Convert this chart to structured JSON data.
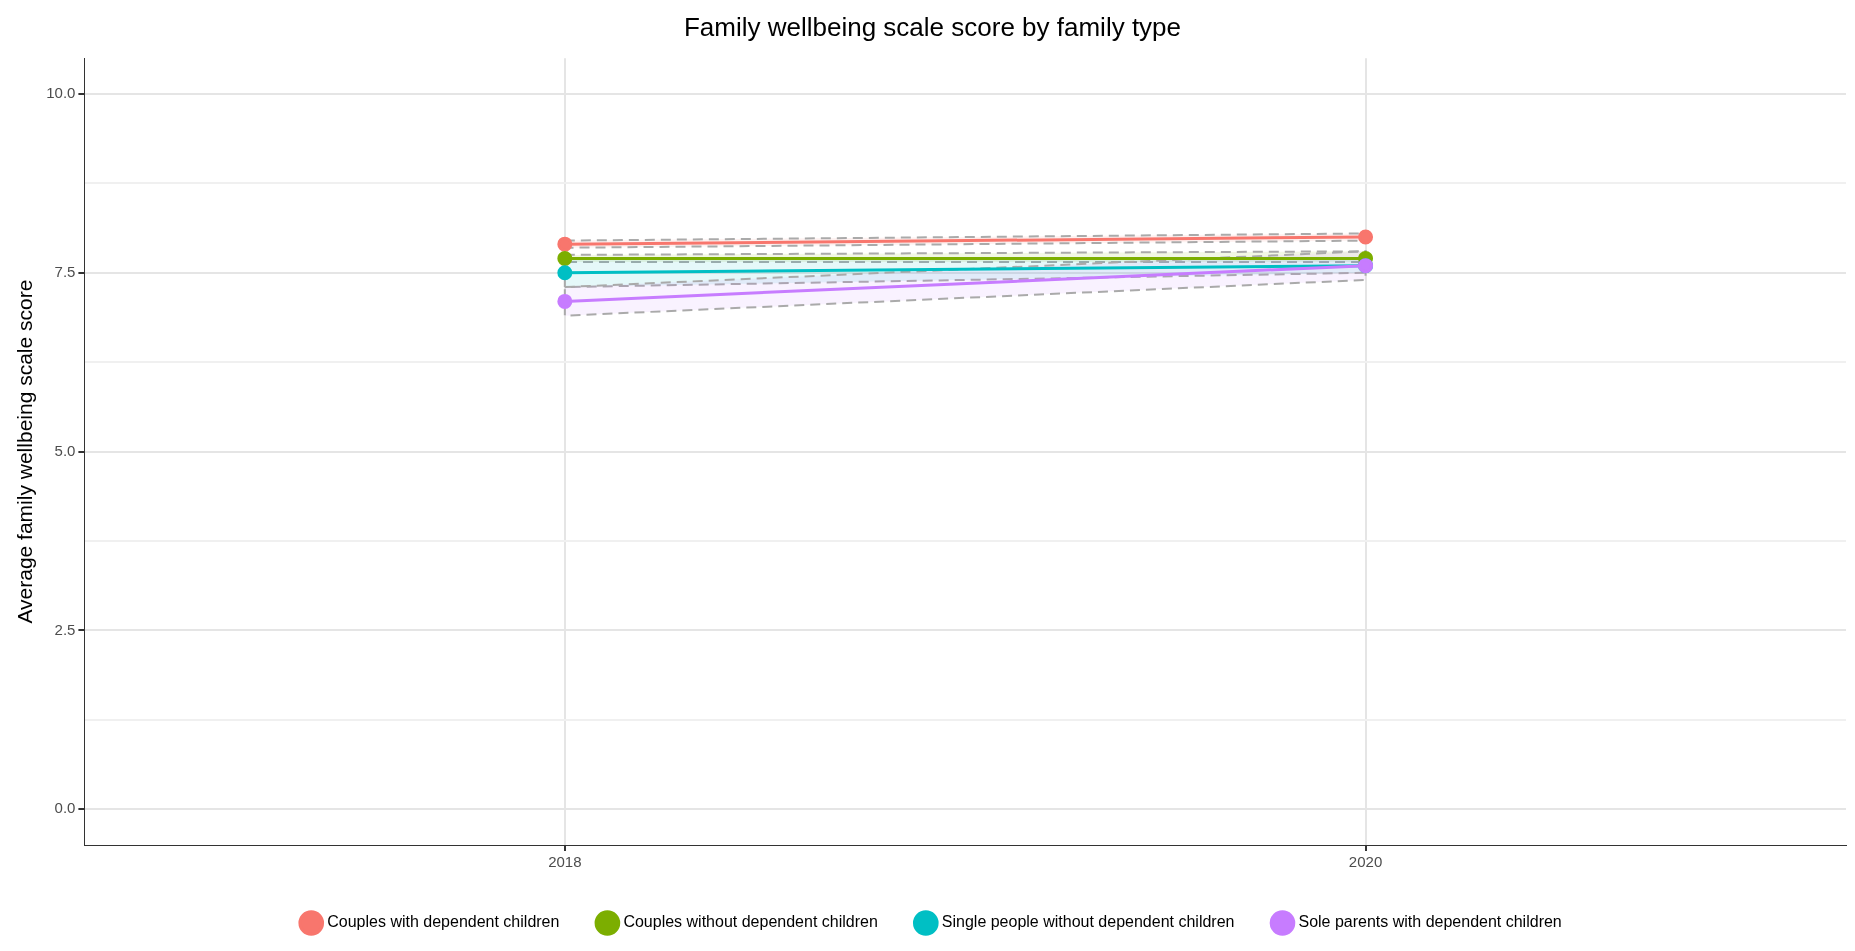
{
  "chart_data": {
    "type": "line",
    "title": "Family wellbeing scale score by family type",
    "ylabel": "Average family wellbeing scale score",
    "x": [
      2018,
      2020
    ],
    "xlim": [
      2016.8,
      2021.2
    ],
    "xticks": [
      2018,
      2020
    ],
    "ylim": [
      -0.5,
      10.5
    ],
    "yticks": [
      {
        "value": 0,
        "label": "0.0"
      },
      {
        "value": 1.25,
        "label": null
      },
      {
        "value": 2.5,
        "label": "2.5"
      },
      {
        "value": 3.75,
        "label": null
      },
      {
        "value": 5,
        "label": "5.0"
      },
      {
        "value": 6.25,
        "label": null
      },
      {
        "value": 7.5,
        "label": "7.5"
      },
      {
        "value": 8.75,
        "label": null
      },
      {
        "value": 10,
        "label": "10.0"
      }
    ],
    "series": [
      {
        "name": "Couples with dependent children",
        "color": "#f8766d",
        "values": [
          7.9,
          8.0
        ],
        "lower": [
          7.85,
          7.95
        ],
        "upper": [
          7.95,
          8.05
        ]
      },
      {
        "name": "Couples without dependent children",
        "color": "#7cae00",
        "values": [
          7.7,
          7.7
        ],
        "lower": [
          7.65,
          7.65
        ],
        "upper": [
          7.75,
          7.8
        ]
      },
      {
        "name": "Single people without dependent children",
        "color": "#00bfc4",
        "values": [
          7.5,
          7.6
        ],
        "lower": [
          7.3,
          7.5
        ],
        "upper": [
          7.7,
          7.7
        ]
      },
      {
        "name": "Sole parents with dependent children",
        "color": "#c77cff",
        "values": [
          7.1,
          7.6
        ],
        "lower": [
          6.9,
          7.4
        ],
        "upper": [
          7.3,
          7.8
        ]
      }
    ],
    "grid": true,
    "legend": "bottom",
    "marker": "circle",
    "line_style": "solid"
  }
}
